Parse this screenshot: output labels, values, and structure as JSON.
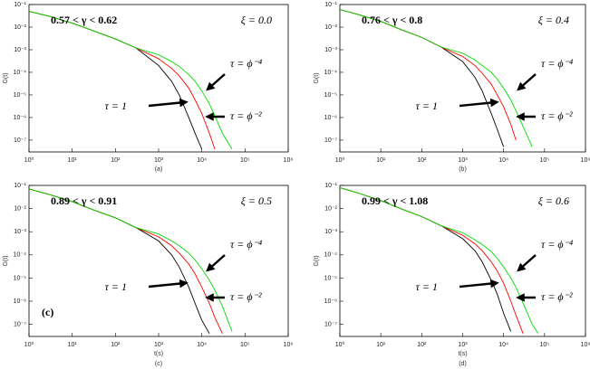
{
  "chart_data": [
    {
      "type": "line",
      "log_x": true,
      "log_y": true,
      "ylabel": "G(t)",
      "caption": "(a)",
      "range_label": "0.57 < γ < 0.62",
      "xi_label": "ξ = 0.0",
      "xlim": [
        1,
        1000000
      ],
      "ylim": [
        3e-08,
        0.1
      ],
      "xticks": [
        {
          "value": 1,
          "label": "10⁰"
        },
        {
          "value": 10,
          "label": "10¹"
        },
        {
          "value": 100,
          "label": "10²"
        },
        {
          "value": 1000,
          "label": "10³"
        },
        {
          "value": 10000,
          "label": "10⁴"
        },
        {
          "value": 100000,
          "label": "10⁵"
        },
        {
          "value": 1000000,
          "label": "10⁶"
        }
      ],
      "yticks": [
        {
          "value": 0.1,
          "label": "10⁻¹"
        },
        {
          "value": 0.01,
          "label": "10⁻²"
        },
        {
          "value": 0.001,
          "label": "10⁻³"
        },
        {
          "value": 0.0001,
          "label": "10⁻⁴"
        },
        {
          "value": 1e-05,
          "label": "10⁻⁵"
        },
        {
          "value": 1e-06,
          "label": "10⁻⁶"
        },
        {
          "value": 1e-07,
          "label": "10⁻⁷"
        }
      ],
      "x": [
        1,
        3,
        10,
        30,
        100,
        300,
        1000,
        2000,
        3000,
        5000,
        7000,
        10000,
        15000,
        20000,
        30000,
        50000,
        70000
      ],
      "series": [
        {
          "name": "τ = 1",
          "color": "#000000",
          "values": [
            0.05,
            0.03,
            0.015,
            0.007,
            0.003,
            0.0012,
            0.0002,
            4e-05,
            1e-05,
            1e-06,
            2e-07,
            4e-08,
            null,
            null,
            null,
            null,
            null
          ]
        },
        {
          "name": "τ = ϕ⁻²",
          "color": "#ff0000",
          "values": [
            0.05,
            0.03,
            0.015,
            0.007,
            0.003,
            0.0012,
            0.0004,
            0.00015,
            7e-05,
            2e-05,
            6e-06,
            1.5e-06,
            2e-07,
            4e-08,
            null,
            null,
            null
          ]
        },
        {
          "name": "τ = ϕ⁻⁴",
          "color": "#00dd00",
          "values": [
            0.05,
            0.03,
            0.015,
            0.007,
            0.003,
            0.0012,
            0.0006,
            0.0003,
            0.00018,
            8e-05,
            4e-05,
            1.5e-05,
            4e-06,
            1.2e-06,
            2e-07,
            4e-08,
            null
          ]
        }
      ]
    },
    {
      "type": "line",
      "log_x": true,
      "log_y": true,
      "ylabel": "G(t)",
      "caption": "(b)",
      "range_label": "0.76 < γ < 0.8",
      "xi_label": "ξ = 0.4",
      "xlim": [
        1,
        1000000
      ],
      "ylim": [
        3e-08,
        0.1
      ],
      "xticks": [
        {
          "value": 1,
          "label": "10⁰"
        },
        {
          "value": 10,
          "label": "10¹"
        },
        {
          "value": 100,
          "label": "10²"
        },
        {
          "value": 1000,
          "label": "10³"
        },
        {
          "value": 10000,
          "label": "10⁴"
        },
        {
          "value": 100000,
          "label": "10⁵"
        },
        {
          "value": 1000000,
          "label": "10⁶"
        }
      ],
      "yticks": [
        {
          "value": 0.1,
          "label": "10⁻¹"
        },
        {
          "value": 0.01,
          "label": "10⁻²"
        },
        {
          "value": 0.001,
          "label": "10⁻³"
        },
        {
          "value": 0.0001,
          "label": "10⁻⁴"
        },
        {
          "value": 1e-05,
          "label": "10⁻⁵"
        },
        {
          "value": 1e-06,
          "label": "10⁻⁶"
        },
        {
          "value": 1e-07,
          "label": "10⁻⁷"
        }
      ],
      "x": [
        1,
        3,
        10,
        30,
        100,
        300,
        1000,
        2000,
        3000,
        5000,
        7000,
        10000,
        15000,
        20000,
        30000,
        50000,
        70000
      ],
      "series": [
        {
          "name": "τ = 1",
          "color": "#000000",
          "values": [
            0.06,
            0.035,
            0.018,
            0.008,
            0.0035,
            0.0013,
            0.0003,
            6e-05,
            1.5e-05,
            1.5e-06,
            3e-07,
            5e-08,
            null,
            null,
            null,
            null,
            null
          ]
        },
        {
          "name": "τ = ϕ⁻²",
          "color": "#ff0000",
          "values": [
            0.06,
            0.035,
            0.018,
            0.008,
            0.0035,
            0.0013,
            0.0005,
            0.0002,
            9e-05,
            3e-05,
            1e-05,
            3e-06,
            5e-07,
            1e-07,
            null,
            null,
            null
          ]
        },
        {
          "name": "τ = ϕ⁻⁴",
          "color": "#00dd00",
          "values": [
            0.06,
            0.035,
            0.018,
            0.008,
            0.0035,
            0.0013,
            0.0007,
            0.00035,
            0.0002,
            0.0001,
            5e-05,
            2e-05,
            6e-06,
            2e-06,
            4e-07,
            5e-08,
            null
          ]
        }
      ]
    },
    {
      "type": "line",
      "log_x": true,
      "log_y": true,
      "ylabel": "G(t)",
      "xlabel": "t(s)",
      "caption": "(c)",
      "panel_mark": "(c)",
      "range_label": "0.89 < γ < 0.91",
      "xi_label": "ξ = 0.5",
      "xlim": [
        1,
        1000000
      ],
      "ylim": [
        3e-08,
        0.1
      ],
      "xticks": [
        {
          "value": 1,
          "label": "10⁰"
        },
        {
          "value": 10,
          "label": "10¹"
        },
        {
          "value": 100,
          "label": "10²"
        },
        {
          "value": 1000,
          "label": "10³"
        },
        {
          "value": 10000,
          "label": "10⁴"
        },
        {
          "value": 100000,
          "label": "10⁵"
        },
        {
          "value": 1000000,
          "label": "10⁶"
        }
      ],
      "yticks": [
        {
          "value": 0.1,
          "label": "10⁻¹"
        },
        {
          "value": 0.01,
          "label": "10⁻²"
        },
        {
          "value": 0.001,
          "label": "10⁻³"
        },
        {
          "value": 0.0001,
          "label": "10⁻⁴"
        },
        {
          "value": 1e-05,
          "label": "10⁻⁵"
        },
        {
          "value": 1e-06,
          "label": "10⁻⁶"
        },
        {
          "value": 1e-07,
          "label": "10⁻⁷"
        }
      ],
      "x": [
        1,
        3,
        10,
        30,
        100,
        300,
        1000,
        2000,
        3000,
        5000,
        7000,
        10000,
        15000,
        20000,
        30000,
        50000,
        70000
      ],
      "series": [
        {
          "name": "τ = 1",
          "color": "#000000",
          "values": [
            0.07,
            0.04,
            0.02,
            0.009,
            0.004,
            0.0015,
            0.0004,
            0.0001,
            3e-05,
            4e-06,
            8e-07,
            1.5e-07,
            4e-08,
            null,
            null,
            null,
            null
          ]
        },
        {
          "name": "τ = ϕ⁻²",
          "color": "#ff0000",
          "values": [
            0.07,
            0.04,
            0.02,
            0.009,
            0.004,
            0.0015,
            0.0006,
            0.00025,
            0.00012,
            4e-05,
            1.5e-05,
            4e-06,
            8e-07,
            2e-07,
            4e-08,
            null,
            null
          ]
        },
        {
          "name": "τ = ϕ⁻⁴",
          "color": "#00dd00",
          "values": [
            0.07,
            0.04,
            0.02,
            0.009,
            0.004,
            0.0015,
            0.0008,
            0.0004,
            0.00025,
            0.00012,
            6e-05,
            2.5e-05,
            8e-06,
            3e-06,
            6e-07,
            5e-08,
            null
          ]
        }
      ]
    },
    {
      "type": "line",
      "log_x": true,
      "log_y": true,
      "ylabel": "G(t)",
      "xlabel": "t(s)",
      "caption": "(d)",
      "range_label": "0.99 < γ < 1.08",
      "xi_label": "ξ = 0.6",
      "xlim": [
        1,
        1000000
      ],
      "ylim": [
        3e-08,
        0.1
      ],
      "xticks": [
        {
          "value": 1,
          "label": "10⁰"
        },
        {
          "value": 10,
          "label": "10¹"
        },
        {
          "value": 100,
          "label": "10²"
        },
        {
          "value": 1000,
          "label": "10³"
        },
        {
          "value": 10000,
          "label": "10⁴"
        },
        {
          "value": 100000,
          "label": "10⁵"
        },
        {
          "value": 1000000,
          "label": "10⁶"
        }
      ],
      "yticks": [
        {
          "value": 0.1,
          "label": "10⁻¹"
        },
        {
          "value": 0.01,
          "label": "10⁻²"
        },
        {
          "value": 0.001,
          "label": "10⁻³"
        },
        {
          "value": 0.0001,
          "label": "10⁻⁴"
        },
        {
          "value": 1e-05,
          "label": "10⁻⁵"
        },
        {
          "value": 1e-06,
          "label": "10⁻⁶"
        },
        {
          "value": 1e-07,
          "label": "10⁻⁷"
        }
      ],
      "x": [
        1,
        3,
        10,
        30,
        100,
        300,
        1000,
        2000,
        3000,
        5000,
        7000,
        10000,
        15000,
        20000,
        30000,
        50000,
        70000
      ],
      "series": [
        {
          "name": "τ = 1",
          "color": "#000000",
          "values": [
            0.08,
            0.045,
            0.022,
            0.01,
            0.0045,
            0.0018,
            0.0005,
            0.00015,
            5e-05,
            8e-06,
            2e-06,
            3e-07,
            5e-08,
            null,
            null,
            null,
            null
          ]
        },
        {
          "name": "τ = ϕ⁻²",
          "color": "#ff0000",
          "values": [
            0.08,
            0.045,
            0.022,
            0.01,
            0.0045,
            0.0018,
            0.0007,
            0.0003,
            0.00015,
            5e-05,
            2e-05,
            6e-06,
            1e-06,
            2.5e-07,
            4e-08,
            null,
            null
          ]
        },
        {
          "name": "τ = ϕ⁻⁴",
          "color": "#00dd00",
          "values": [
            0.08,
            0.045,
            0.022,
            0.01,
            0.0045,
            0.0018,
            0.0009,
            0.00045,
            0.00028,
            0.00014,
            7e-05,
            3e-05,
            1e-05,
            4e-06,
            8e-07,
            1e-07,
            4e-08
          ]
        }
      ]
    }
  ]
}
